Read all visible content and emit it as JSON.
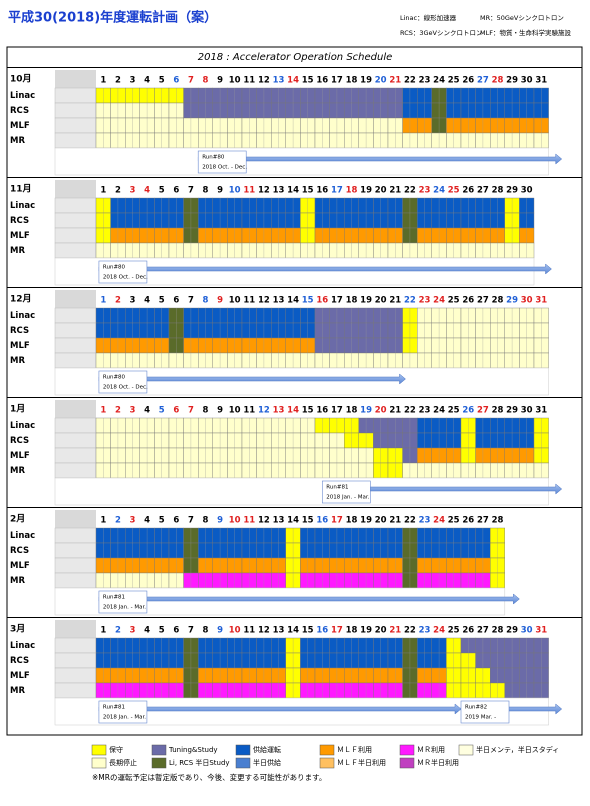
{
  "header": {
    "title": "平成30(2018)年度運転計画（案）",
    "notes": [
      "Linac：線形加速器",
      "MR：50GeVシンクロトロン",
      "RCS：3GeVシンクロトロン",
      "MLF：物質・生命科学実験施設"
    ]
  },
  "schedule": {
    "title": "2018 : Accelerator Operation Schedule",
    "facilities": [
      "Linac",
      "RCS",
      "MLF",
      "MR"
    ],
    "state_colors": {
      "Y": "#ffff00",
      "P": "#6b6ba8",
      "B": "#0a5bc4",
      "O": "#ff9a00",
      "M": "#ff1aff",
      "L": "#ffffcc",
      "G": "#5a6b2a"
    },
    "day_colors": {
      "w": "#000000",
      "s": "#1f5fd6",
      "h": "#e02020"
    },
    "months": [
      {
        "label": "10月",
        "days": [
          1,
          2,
          3,
          4,
          5,
          6,
          7,
          8,
          9,
          10,
          11,
          12,
          13,
          14,
          15,
          16,
          17,
          18,
          19,
          20,
          21,
          22,
          23,
          24,
          25,
          26,
          27,
          28,
          29,
          30,
          31
        ],
        "day_types": "wwwwwshhwwwwshwwwwwshwwwwwshwww",
        "rows": [
          "YYYYYYPPPPPPPPPPPPPPPBBGBBBBBBB",
          "LLLLLLPPPPPPPPPPPPPPPBBGBBBBBBB",
          "LLLLLLLLLLLLLLLLLLLLLOOGOOOOOOO",
          "LLLLLLLLLLLLLLLLLLLLLLLLLLLLLLL"
        ],
        "runs": [
          {
            "name": "Run#80",
            "period": "2018  Oct. - Dec."
          }
        ]
      },
      {
        "label": "11月",
        "days": [
          1,
          2,
          3,
          4,
          5,
          6,
          7,
          8,
          9,
          10,
          11,
          12,
          13,
          14,
          15,
          16,
          17,
          18,
          19,
          20,
          21,
          22,
          23,
          24,
          25,
          26,
          27,
          28,
          29,
          30
        ],
        "day_types": "wwhhwwwwwshwwwwwshwwwwhshwwwww",
        "rows": [
          "YBBBBBGBBBBBBBYBBBBBBGBBBBBBYB",
          "YBBBBBGBBBBBBBYBBBBBBGBBBBBBYB",
          "YOOOOOGOOOOOOOYOOOOOOGOOOOOOYO",
          "LLLLLLLLLLLLLLLLLLLLLLLLLLLLLL"
        ],
        "runs": [
          {
            "name": "Run#80",
            "period": "2018  Oct. - Dec."
          }
        ]
      },
      {
        "label": "12月",
        "days": [
          1,
          2,
          3,
          4,
          5,
          6,
          7,
          8,
          9,
          10,
          11,
          12,
          13,
          14,
          15,
          16,
          17,
          18,
          19,
          20,
          21,
          22,
          23,
          24,
          25,
          26,
          27,
          28,
          29,
          30,
          31
        ],
        "day_types": "shwwwwwshwwwwwshwwwwwshhwwwwshh",
        "rows": [
          "BBBBBGBBBBBBBBBPPPPPPYLLLLLLLLL",
          "BBBBBGBBBBBBBBBPPPPPPYLLLLLLLLL",
          "OOOOOGOOOOOOOOOPPPPPPYLLLLLLLLL",
          "LLLLLLLLLLLLLLLLLLLLLLLLLLLLLLL"
        ],
        "runs": [
          {
            "name": "Run#80",
            "period": "2018  Oct. - Dec."
          }
        ]
      },
      {
        "label": "1月",
        "days": [
          1,
          2,
          3,
          4,
          5,
          6,
          7,
          8,
          9,
          10,
          11,
          12,
          13,
          14,
          15,
          16,
          17,
          18,
          19,
          20,
          21,
          22,
          23,
          24,
          25,
          26,
          27,
          28,
          29,
          30,
          31
        ],
        "day_types": "hhhwshhwwwwshhwwwwshwwwwwshwwww",
        "rows": [
          "LLLLLLLLLLLLLLLYYYPPPPBBBYBBBBY",
          "LLLLLLLLLLLLLLLLLYYPPPBBBYBBBBY",
          "LLLLLLLLLLLLLLLLLLLYYPOOOYOOOOY",
          "LLLLLLLLLLLLLLLLLLLYYLLLLLLLLLL"
        ],
        "runs": [
          {
            "name": "Run#81",
            "period": "2018  Jan. - Mar."
          }
        ]
      },
      {
        "label": "2月",
        "days": [
          1,
          2,
          3,
          4,
          5,
          6,
          7,
          8,
          9,
          10,
          11,
          12,
          13,
          14,
          15,
          16,
          17,
          18,
          19,
          20,
          21,
          22,
          23,
          24,
          25,
          26,
          27,
          28
        ],
        "day_types": "wshwwwwwshhwwwwshwwwwwshwwww",
        "rows": [
          "BBBBBBGBBBBBBYBBBBBBBGBBBBBY",
          "BBBBBBGBBBBBBYBBBBBBBGBBBBBY",
          "OOOOOOGOOOOOOYOOOOOOOGOOOOOY",
          "LLLLLLMMMMMMMYMMMMMMMGMMMMMY"
        ],
        "runs": [
          {
            "name": "Run#81",
            "period": "2018  Jan. - Mar."
          }
        ]
      },
      {
        "label": "3月",
        "days": [
          1,
          2,
          3,
          4,
          5,
          6,
          7,
          8,
          9,
          10,
          11,
          12,
          13,
          14,
          15,
          16,
          17,
          18,
          19,
          20,
          21,
          22,
          23,
          24,
          25,
          26,
          27,
          28,
          29,
          30,
          31
        ],
        "day_types": "wshwwwwwshwwwwwshwwwhwshwwwwwsh",
        "rows": [
          "BBBBBBGBBBBBBYBBBBBBBGBBYPPPPPP",
          "BBBBBBGBBBBBBYBBBBBBBGBBYYPPPPP",
          "OOOOOOGOOOOOOYOOOOOOOGOOYYYPPPP",
          "MMMMMMGMMMMMMYMMMMMMMGMMYYYYPPP"
        ],
        "runs": [
          {
            "name": "Run#81",
            "period": "2018  Jan. - Mar."
          },
          {
            "name": "Run#82",
            "period": "2019  Mar. -"
          }
        ]
      }
    ]
  },
  "legend": [
    {
      "label": "保守",
      "color": "#ffff00"
    },
    {
      "label": "長期停止",
      "color": "#ffffcc"
    },
    {
      "label": "Tuning&Study",
      "color": "#6b6ba8"
    },
    {
      "label": "Li, RCS 半日Study",
      "color": "#5a6b2a"
    },
    {
      "label": "供給運転",
      "color": "#0a5bc4"
    },
    {
      "label": "半日供給",
      "color": "#4a7fd0"
    },
    {
      "label": "ＭＬＦ利用",
      "color": "#ff9a00"
    },
    {
      "label": "ＭＬＦ半日利用",
      "color": "#ffc060"
    },
    {
      "label": "ＭＲ利用",
      "color": "#ff1aff"
    },
    {
      "label": "ＭＲ半日利用",
      "color": "#c040c0"
    },
    {
      "label": "半日メンテ，半日スタディ",
      "color": "#ffffe0"
    }
  ],
  "footnote": "※MRの運転予定は暫定版であり、今後、変更する可能性があります。"
}
